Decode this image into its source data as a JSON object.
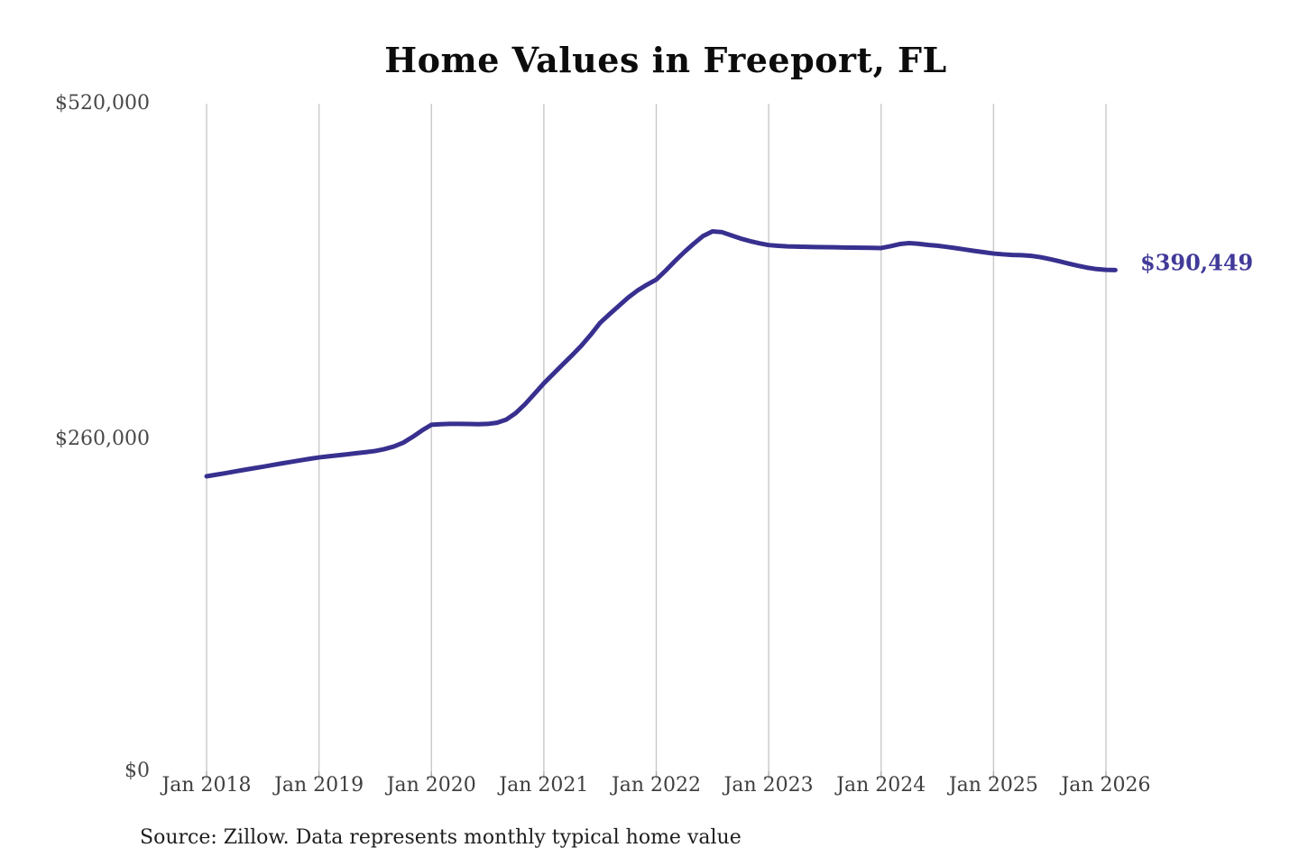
{
  "title": "Home Values in Freeport, FL",
  "source_note": "Source: Zillow. Data represents monthly typical home value",
  "latest_value_label": "$390,449",
  "colors": {
    "line": "#38308f",
    "latest_label": "#413a99",
    "gridline": "#c9c9c9",
    "tick_stub": "#ababab",
    "axis_text": "#454545",
    "title_text": "#0c0c0c",
    "source_text": "#1e1e1e",
    "background": "#ffffff"
  },
  "y_axis": {
    "ticks": [
      {
        "label": "$0",
        "value": 0
      },
      {
        "label": "$260,000",
        "value": 260000
      },
      {
        "label": "$520,000",
        "value": 520000
      }
    ],
    "max": 520000
  },
  "x_axis": {
    "tick_labels": [
      "Jan 2018",
      "Jan 2019",
      "Jan 2020",
      "Jan 2021",
      "Jan 2022",
      "Jan 2023",
      "Jan 2024",
      "Jan 2025",
      "Jan 2026"
    ]
  },
  "chart_data": {
    "type": "line",
    "title": "Home Values in Freeport, FL",
    "grid": "vertical-only",
    "legend_position": "none",
    "ylim": [
      0,
      520000
    ],
    "y_tick_values": [
      0,
      260000,
      520000
    ],
    "y_tick_labels": [
      "$0",
      "$260,000",
      "$520,000"
    ],
    "x_tick_labels": [
      "Jan 2018",
      "Jan 2019",
      "Jan 2020",
      "Jan 2021",
      "Jan 2022",
      "Jan 2023",
      "Jan 2024",
      "Jan 2025",
      "Jan 2026"
    ],
    "latest_value": 390449,
    "series": [
      {
        "name": "Typical home value",
        "months": [
          "Jan 2018",
          "Feb 2018",
          "Mar 2018",
          "Apr 2018",
          "May 2018",
          "Jun 2018",
          "Jul 2018",
          "Aug 2018",
          "Sep 2018",
          "Oct 2018",
          "Nov 2018",
          "Dec 2018",
          "Jan 2019",
          "Feb 2019",
          "Mar 2019",
          "Apr 2019",
          "May 2019",
          "Jun 2019",
          "Jul 2019",
          "Aug 2019",
          "Sep 2019",
          "Oct 2019",
          "Nov 2019",
          "Dec 2019",
          "Jan 2020",
          "Feb 2020",
          "Mar 2020",
          "Apr 2020",
          "May 2020",
          "Jun 2020",
          "Jul 2020",
          "Aug 2020",
          "Sep 2020",
          "Oct 2020",
          "Nov 2020",
          "Dec 2020",
          "Jan 2021",
          "Feb 2021",
          "Mar 2021",
          "Apr 2021",
          "May 2021",
          "Jun 2021",
          "Jul 2021",
          "Aug 2021",
          "Sep 2021",
          "Oct 2021",
          "Nov 2021",
          "Dec 2021",
          "Jan 2022",
          "Feb 2022",
          "Mar 2022",
          "Apr 2022",
          "May 2022",
          "Jun 2022",
          "Jul 2022",
          "Aug 2022",
          "Sep 2022",
          "Oct 2022",
          "Nov 2022",
          "Dec 2022",
          "Jan 2023",
          "Feb 2023",
          "Mar 2023",
          "Apr 2023",
          "May 2023",
          "Jun 2023",
          "Jul 2023",
          "Aug 2023",
          "Sep 2023",
          "Oct 2023",
          "Nov 2023",
          "Dec 2023",
          "Jan 2024",
          "Feb 2024",
          "Mar 2024",
          "Apr 2024",
          "May 2024",
          "Jun 2024",
          "Jul 2024",
          "Aug 2024",
          "Sep 2024",
          "Oct 2024",
          "Nov 2024",
          "Dec 2024",
          "Jan 2025",
          "Feb 2025",
          "Mar 2025",
          "Apr 2025",
          "May 2025",
          "Jun 2025",
          "Jul 2025",
          "Aug 2025",
          "Sep 2025",
          "Oct 2025",
          "Nov 2025",
          "Dec 2025",
          "Jan 2026",
          "Feb 2026"
        ],
        "values": [
          229800,
          231000,
          232200,
          233500,
          234800,
          236000,
          237200,
          238500,
          239800,
          241000,
          242200,
          243400,
          244500,
          245300,
          246100,
          246900,
          247800,
          248600,
          249500,
          251000,
          253000,
          256000,
          260500,
          265500,
          269900,
          270400,
          270600,
          270600,
          270500,
          270400,
          270600,
          271500,
          274000,
          279000,
          286000,
          294000,
          302200,
          309500,
          316800,
          324000,
          331500,
          340000,
          349300,
          356000,
          362500,
          369000,
          374500,
          379000,
          383000,
          390000,
          397500,
          404500,
          411000,
          417000,
          420600,
          420000,
          417500,
          415000,
          413000,
          411300,
          409900,
          409300,
          408900,
          408700,
          408500,
          408400,
          408300,
          408200,
          408000,
          407900,
          407800,
          407700,
          407600,
          409000,
          410700,
          411400,
          410900,
          410000,
          409400,
          408500,
          407500,
          406400,
          405300,
          404300,
          403300,
          402700,
          402200,
          402000,
          401500,
          400500,
          399000,
          397300,
          395500,
          393800,
          392300,
          391200,
          390600,
          390449
        ]
      }
    ]
  }
}
